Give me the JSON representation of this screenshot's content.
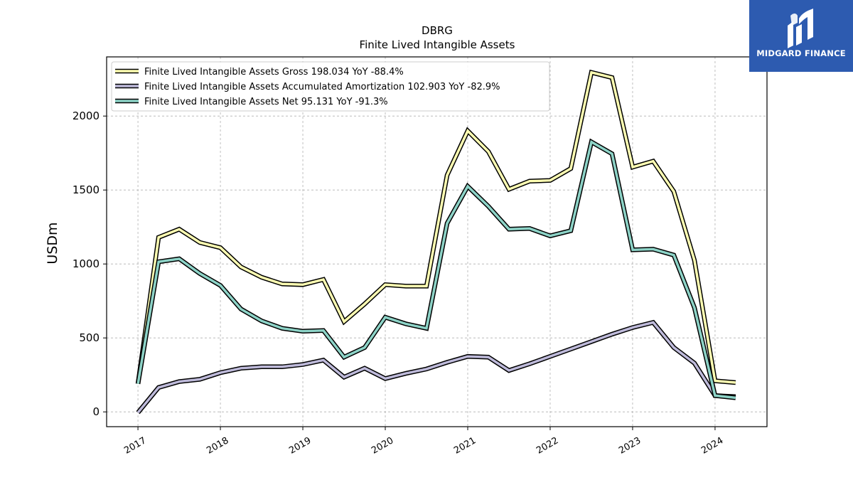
{
  "header": {
    "ticker": "DBRG",
    "subtitle": "Finite Lived Intangible Assets"
  },
  "logo": {
    "text": "MIDGARD FINANCE",
    "background": "#2d5bb0"
  },
  "chart_data": {
    "type": "line",
    "title": "DBRG",
    "subtitle": "Finite Lived Intangible Assets",
    "xlabel": "",
    "ylabel": "USDm",
    "ylim": [
      -100,
      2400
    ],
    "xlim": [
      2016.62,
      2024.63
    ],
    "yticks": [
      0,
      500,
      1000,
      1500,
      2000
    ],
    "xticks": [
      2017,
      2018,
      2019,
      2020,
      2021,
      2022,
      2023,
      2024
    ],
    "xtick_labels": [
      "2017",
      "2018",
      "2019",
      "2020",
      "2021",
      "2022",
      "2023",
      "2024"
    ],
    "grid": true,
    "legend_position": "top-left",
    "x": [
      2017.0,
      2017.25,
      2017.5,
      2017.75,
      2018.0,
      2018.25,
      2018.5,
      2018.75,
      2019.0,
      2019.25,
      2019.5,
      2019.75,
      2020.0,
      2020.25,
      2020.5,
      2020.75,
      2021.0,
      2021.25,
      2021.5,
      2021.75,
      2022.0,
      2022.25,
      2022.5,
      2022.75,
      2023.0,
      2023.25,
      2023.5,
      2023.75,
      2024.0,
      2024.25
    ],
    "series": [
      {
        "name": "Finite Lived Intangible Assets Gross",
        "legend_label": "Finite Lived Intangible Assets Gross  198.034 YoY -88.4%",
        "color": "#ffffb3",
        "values": [
          190,
          1180,
          1235,
          1145,
          1110,
          980,
          910,
          865,
          860,
          895,
          610,
          730,
          860,
          850,
          850,
          1600,
          1900,
          1760,
          1505,
          1560,
          1565,
          1645,
          2295,
          2260,
          1655,
          1695,
          1490,
          1025,
          210,
          198
        ]
      },
      {
        "name": "Finite Lived Intangible Assets Accumulated Amortization",
        "legend_label": "Finite Lived Intangible Assets Accumulated Amortization  102.903 YoY -82.9%",
        "color": "#bebada",
        "values": [
          -5,
          165,
          205,
          220,
          265,
          295,
          305,
          305,
          320,
          350,
          235,
          295,
          225,
          260,
          290,
          335,
          375,
          370,
          280,
          325,
          375,
          425,
          475,
          525,
          570,
          605,
          435,
          330,
          110,
          103
        ]
      },
      {
        "name": "Finite Lived Intangible Assets Net",
        "legend_label": "Finite Lived Intangible Assets Net  95.131 YoY -91.3%",
        "color": "#8dd3c7",
        "values": [
          190,
          1015,
          1035,
          935,
          855,
          695,
          615,
          565,
          545,
          550,
          370,
          435,
          640,
          595,
          565,
          1275,
          1525,
          1390,
          1235,
          1240,
          1190,
          1225,
          1825,
          1745,
          1095,
          1100,
          1060,
          705,
          110,
          95
        ]
      }
    ]
  }
}
